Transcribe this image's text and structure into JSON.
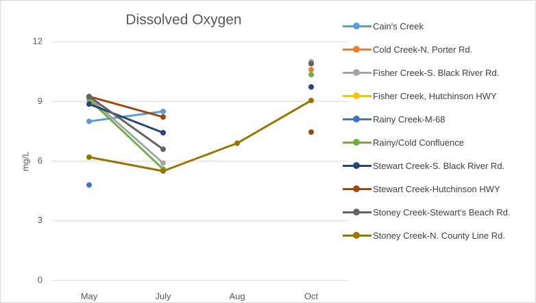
{
  "chart_data": {
    "type": "line",
    "title": "Dissolved Oxygen",
    "y_label": "mg/L",
    "categories": [
      "May",
      "July",
      "Aug",
      "Oct"
    ],
    "ylim": [
      0,
      14
    ],
    "yticks": [
      0,
      3,
      6,
      9,
      12
    ],
    "grid": true,
    "legend": "right",
    "series": [
      {
        "name": "Cain's Creek",
        "color": "#5b9bd5",
        "values": [
          8.0,
          8.5,
          null,
          null
        ]
      },
      {
        "name": "Cold Creek-N. Porter Rd.",
        "color": "#ed7d31",
        "values": [
          null,
          null,
          null,
          10.6
        ]
      },
      {
        "name": "Fisher Creek-S. Black River Rd.",
        "color": "#a5a5a5",
        "values": [
          9.2,
          5.9,
          null,
          11.0
        ]
      },
      {
        "name": "Fisher Creek, Hutchinson HWY",
        "color": "#ffc000",
        "values": [
          9.1,
          null,
          null,
          null
        ]
      },
      {
        "name": "Rainy Creek-M-68",
        "color": "#4472c4",
        "values": [
          4.8,
          null,
          null,
          null
        ]
      },
      {
        "name": "Rainy/Cold Confluence",
        "color": "#70ad47",
        "values": [
          9.1,
          5.6,
          null,
          10.35
        ]
      },
      {
        "name": "Stewart Creek-S. Black River Rd.",
        "color": "#264478",
        "values": [
          8.87,
          7.43,
          null,
          9.73
        ]
      },
      {
        "name": "Stewart Creek-Hutchinson HWY",
        "color": "#9e480e",
        "values": [
          9.25,
          8.22,
          null,
          7.46
        ]
      },
      {
        "name": "Stoney Creek-Stewart's Beach Rd.",
        "color": "#636363",
        "values": [
          9.25,
          6.6,
          null,
          10.9
        ]
      },
      {
        "name": "Stoney Creek-N. County Line Rd.",
        "color": "#997300",
        "values": [
          6.2,
          5.5,
          6.9,
          9.05
        ]
      }
    ]
  }
}
